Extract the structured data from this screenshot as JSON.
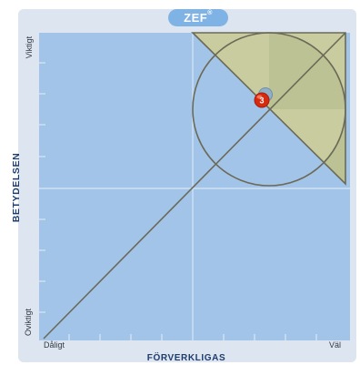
{
  "brand": {
    "name": "ZEF",
    "mark": "®"
  },
  "axes": {
    "y_title": "BETYDELSEN",
    "y_top": "Viktigt",
    "y_bottom": "Oviktigt",
    "x_title": "FÖRVERKLIGAS",
    "x_left": "Dåligt",
    "x_right": "Väl"
  },
  "marker": {
    "label": "3",
    "color": "#d62a10"
  },
  "colors": {
    "plot_background": "#a2c4e8",
    "frame_background": "#dde5f0",
    "highlight_region": "#c8cc9e",
    "outline": "#6b6a58",
    "axis_title": "#1f3c6e"
  }
}
